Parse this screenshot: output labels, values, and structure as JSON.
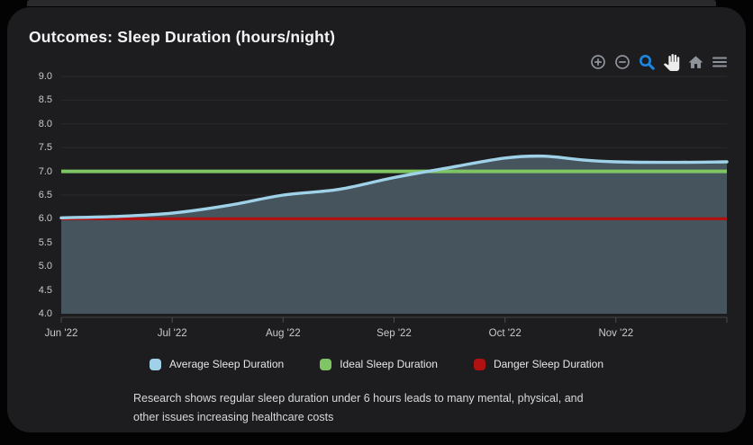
{
  "card": {
    "title": "Outcomes: Sleep Duration (hours/night)",
    "footnote_lines": [
      "Research shows regular sleep duration under 6 hours leads to many mental, physical, and",
      "other issues increasing healthcare costs"
    ]
  },
  "toolbar": {
    "icons": [
      {
        "name": "zoom-in-icon",
        "glyph": "zoom-in",
        "color": "#8f949c",
        "active": false
      },
      {
        "name": "zoom-out-icon",
        "glyph": "zoom-out",
        "color": "#8f949c",
        "active": false
      },
      {
        "name": "selection-zoom-icon",
        "glyph": "selection-zoom",
        "color": "#1d87e4",
        "active": true
      },
      {
        "name": "pan-icon",
        "glyph": "pan",
        "color": "#ececec",
        "active": false
      },
      {
        "name": "home-icon",
        "glyph": "home",
        "color": "#8f949c",
        "active": false
      },
      {
        "name": "menu-icon",
        "glyph": "menu",
        "color": "#8f949c",
        "active": false
      }
    ],
    "accent_color": "#1d87e4"
  },
  "chart_data": {
    "type": "area",
    "title": "Outcomes: Sleep Duration (hours/night)",
    "grid": "horizontal",
    "legend_position": "bottom",
    "x_axis": {
      "labels": [
        "Jun '22",
        "Jul '22",
        "Aug '22",
        "Sep '22",
        "Oct '22",
        "Nov '22"
      ],
      "unit": "month",
      "range_months": 6
    },
    "y_axis": {
      "min": 4.0,
      "max": 9.0,
      "step": 0.5,
      "tick_labels": [
        "9.0",
        "8.5",
        "8.0",
        "7.5",
        "7.0",
        "6.5",
        "6.0",
        "5.5",
        "5.0",
        "4.5",
        "4.0"
      ]
    },
    "series": [
      {
        "name": "Average Sleep Duration",
        "type": "area",
        "color": "#9fd2e9",
        "fill_color": "#46545e",
        "x_months": [
          0,
          0.5,
          1,
          1.5,
          2,
          2.5,
          3,
          3.5,
          4,
          4.35,
          4.7,
          5,
          5.5,
          6
        ],
        "values": [
          6.02,
          6.05,
          6.12,
          6.28,
          6.5,
          6.62,
          6.87,
          7.08,
          7.28,
          7.32,
          7.24,
          7.2,
          7.19,
          7.2
        ]
      },
      {
        "name": "Ideal Sleep Duration",
        "type": "line",
        "color": "#80c563",
        "constant_value": 7.0
      },
      {
        "name": "Danger Sleep Duration",
        "type": "line",
        "color": "#b01111",
        "constant_value": 6.0
      }
    ]
  }
}
